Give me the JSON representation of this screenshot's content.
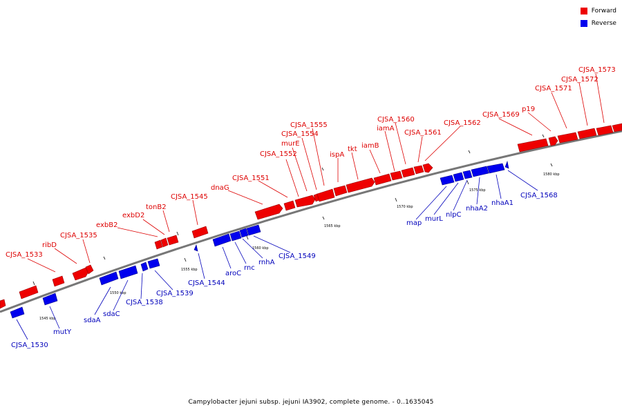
{
  "legend": [
    {
      "label": "Forward",
      "color": "#ee0000"
    },
    {
      "label": "Reverse",
      "color": "#0000ee"
    }
  ],
  "caption": "Campylobacter jejuni subsp. jejuni IA3902, complete genome. - 0..1635045",
  "colors": {
    "forward": "#ee0000",
    "reverse": "#0000ee",
    "backbone": "#777777"
  },
  "ticks": [
    "1545 kbp",
    "1550 kbp",
    "1555 kbp",
    "1560 kbp",
    "1565 kbp",
    "1570 kbp",
    "1575 kbp",
    "1580 kbp"
  ],
  "forward_genes": [
    "CJSA_1533",
    "ribD",
    "CJSA_1535",
    "exbB2",
    "exbD2",
    "tonB2",
    "CJSA_1545",
    "dnaG",
    "CJSA_1551",
    "CJSA_1552",
    "murE",
    "CJSA_1554",
    "CJSA_1555",
    "ispA",
    "tkt",
    "iamB",
    "iamA",
    "CJSA_1560",
    "CJSA_1561",
    "CJSA_1562",
    "CJSA_1569",
    "p19",
    "CJSA_1571",
    "CJSA_1572",
    "CJSA_1573"
  ],
  "reverse_genes": [
    "CJSA_1530",
    "mutY",
    "sdaA",
    "sdaC",
    "CJSA_1538",
    "CJSA_1539",
    "CJSA_1544",
    "aroC",
    "rnc",
    "rnhA",
    "CJSA_1549",
    "map",
    "murL",
    "nlpC",
    "nhaA2",
    "nhaA1",
    "CJSA_1568"
  ]
}
